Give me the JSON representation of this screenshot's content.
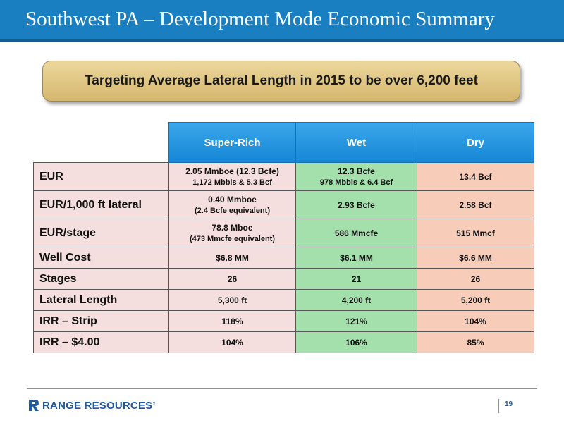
{
  "header": {
    "title": "Southwest PA – Development Mode Economic Summary"
  },
  "banner": {
    "text": "Targeting Average Lateral Length in 2015 to be over 6,200 feet"
  },
  "table": {
    "columns": [
      "Super-Rich",
      "Wet",
      "Dry"
    ],
    "rows": [
      {
        "label": "EUR",
        "cells": [
          {
            "main": "2.05 Mmboe (12.3 Bcfe)",
            "sub": "1,172 Mbbls & 5.3 Bcf"
          },
          {
            "main": "12.3 Bcfe",
            "sub": "978 Mbbls & 6.4 Bcf"
          },
          {
            "main": "13.4 Bcf",
            "sub": ""
          }
        ]
      },
      {
        "label": "EUR/1,000 ft lateral",
        "cells": [
          {
            "main": "0.40 Mmboe",
            "sub": "(2.4 Bcfe equivalent)"
          },
          {
            "main": "2.93 Bcfe",
            "sub": ""
          },
          {
            "main": "2.58 Bcf",
            "sub": ""
          }
        ]
      },
      {
        "label": "EUR/stage",
        "cells": [
          {
            "main": "78.8 Mboe",
            "sub": "(473 Mmcfe equivalent)"
          },
          {
            "main": "586 Mmcfe",
            "sub": ""
          },
          {
            "main": "515 Mmcf",
            "sub": ""
          }
        ]
      },
      {
        "label": "Well Cost",
        "cells": [
          {
            "main": "$6.8 MM",
            "sub": ""
          },
          {
            "main": "$6.1 MM",
            "sub": ""
          },
          {
            "main": "$6.6 MM",
            "sub": ""
          }
        ]
      },
      {
        "label": "Stages",
        "cells": [
          {
            "main": "26",
            "sub": ""
          },
          {
            "main": "21",
            "sub": ""
          },
          {
            "main": "26",
            "sub": ""
          }
        ]
      },
      {
        "label": "Lateral Length",
        "cells": [
          {
            "main": "5,300 ft",
            "sub": ""
          },
          {
            "main": "4,200 ft",
            "sub": ""
          },
          {
            "main": "5,200 ft",
            "sub": ""
          }
        ]
      },
      {
        "label": "IRR – Strip",
        "cells": [
          {
            "main": "118%",
            "sub": ""
          },
          {
            "main": "121%",
            "sub": ""
          },
          {
            "main": "104%",
            "sub": ""
          }
        ]
      },
      {
        "label": "IRR – $4.00",
        "cells": [
          {
            "main": "104%",
            "sub": ""
          },
          {
            "main": "106%",
            "sub": ""
          },
          {
            "main": "85%",
            "sub": ""
          }
        ]
      }
    ]
  },
  "footer": {
    "logo_text": "RANGE RESOURCES’",
    "page_number": "19"
  },
  "colors": {
    "title_bar": "#1a7fc1",
    "banner_fill": "#dcc17b",
    "header_cells": "#1f8fdc",
    "super_rich": "#f5dede",
    "wet": "#a3e0ac",
    "dry": "#f7cdb9",
    "brand_blue": "#1f5aa0"
  }
}
